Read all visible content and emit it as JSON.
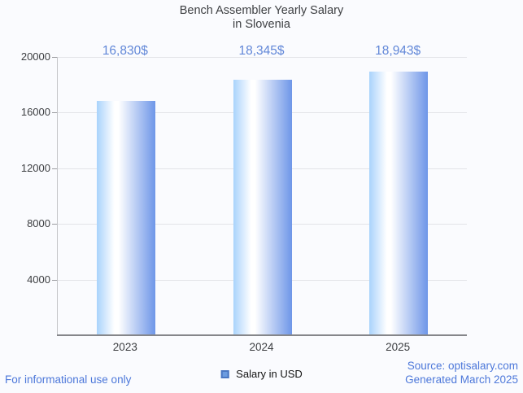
{
  "page": {
    "background": "#fafbfe"
  },
  "title": {
    "text": "Bench Assembler Yearly Salary\nin Slovenia",
    "color": "#3e4043"
  },
  "chart_data": {
    "type": "bar",
    "title": "Bench Assembler Yearly Salary in Slovenia",
    "categories": [
      "2023",
      "2024",
      "2025"
    ],
    "values": [
      16830,
      18345,
      18943
    ],
    "value_labels": [
      "16,830$",
      "18,345$",
      "18,943$"
    ],
    "series_name": "Salary in USD",
    "xlabel": "",
    "ylabel": "",
    "ylim": [
      0,
      20000
    ],
    "yticks": [
      4000,
      8000,
      12000,
      16000,
      20000
    ],
    "grid": true,
    "legend_position": "bottom-center",
    "bar_gradient": [
      "#a9d3fc",
      "#ffffff",
      "#6e96e8"
    ],
    "value_label_color": "#6187d8",
    "gridline_color": "#e3e4e8",
    "axis_color": "#85868a"
  },
  "legend": {
    "label": "Salary in USD",
    "marker_fill": "#6c9ce0",
    "marker_border": "#4a77c2"
  },
  "footer": {
    "left": "For informational use only",
    "source_line1": "Source: optisalary.com",
    "source_line2": "Generated March 2025",
    "color": "#4d78da"
  }
}
